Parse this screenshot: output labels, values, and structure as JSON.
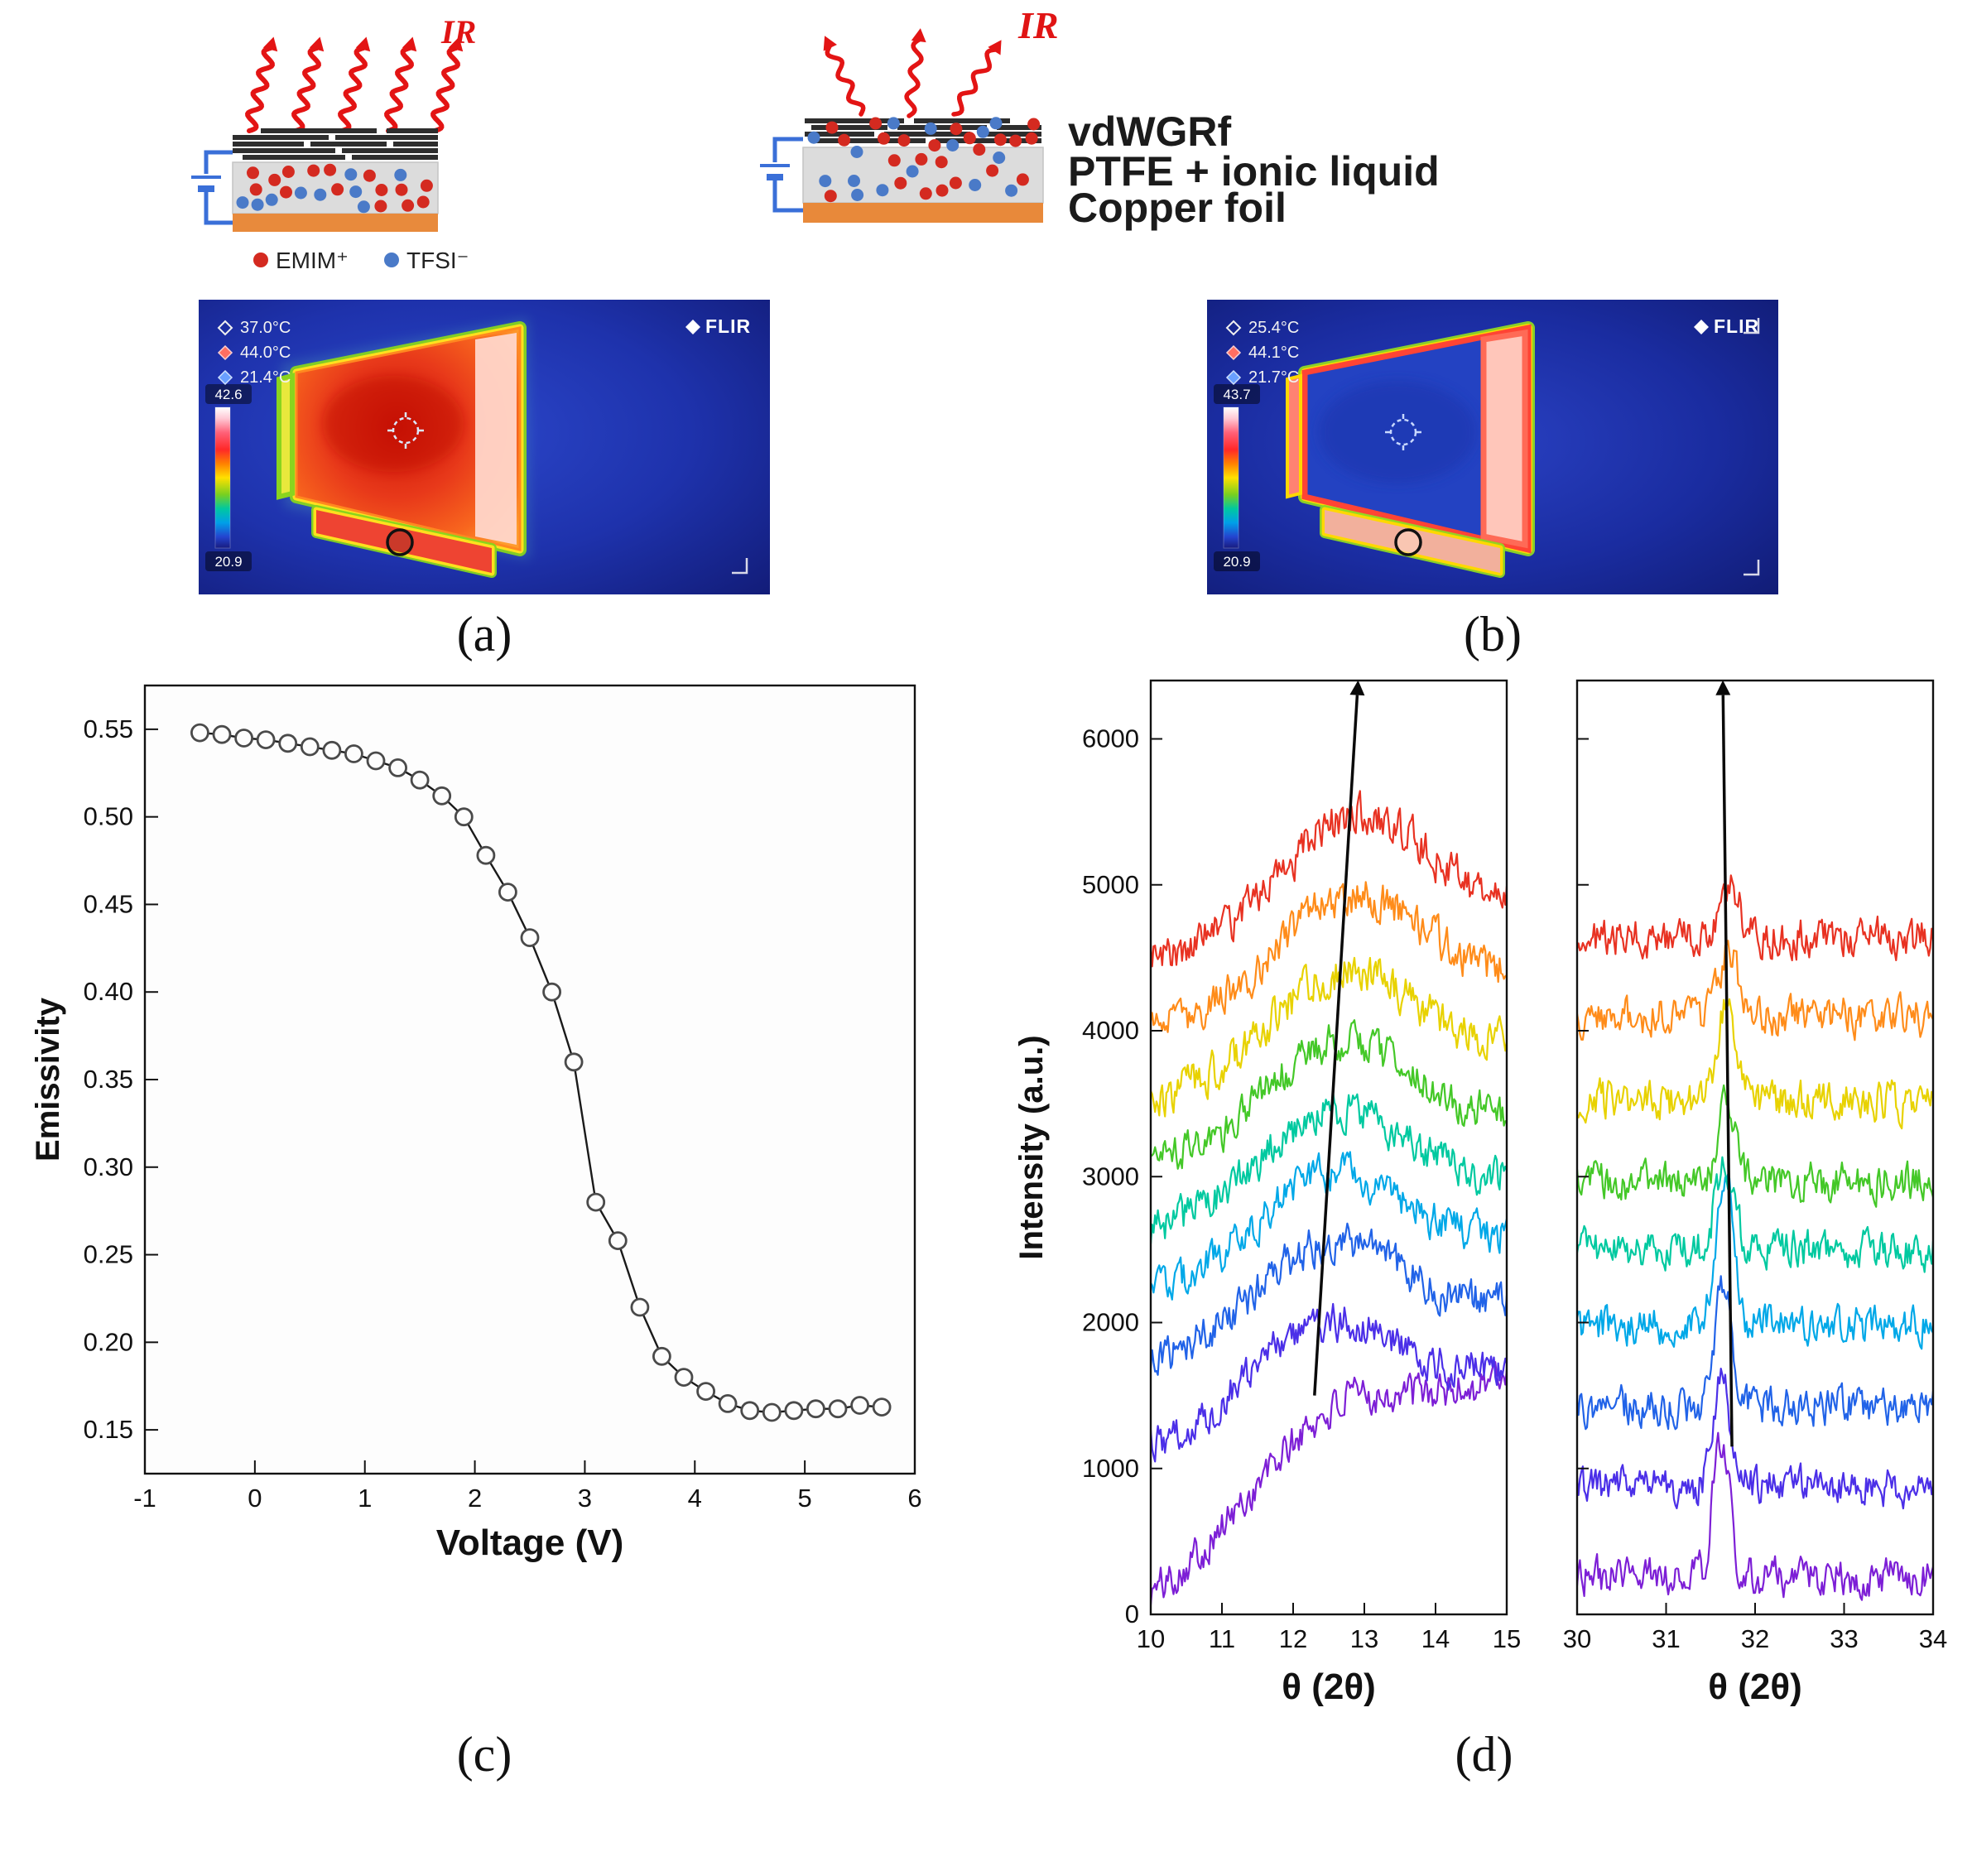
{
  "figure": {
    "panel_labels": {
      "a": "(a)",
      "b": "(b)",
      "c": "(c)",
      "d": "(d)"
    }
  },
  "schematic_a": {
    "ir_label": "IR",
    "legend": [
      {
        "name": "emim-cation",
        "label": "EMIM⁺",
        "color": "#d42a20"
      },
      {
        "name": "tfsi-anion",
        "label": "TFSI⁻",
        "color": "#4a7ac8"
      }
    ]
  },
  "schematic_b": {
    "ir_label": "IR",
    "layer_labels": {
      "film": "vdWGRf",
      "electrolyte": "PTFE + ionic liquid",
      "substrate": "Copper foil"
    }
  },
  "thermal_a": {
    "brand": "FLIR",
    "readings": [
      {
        "marker": "spot-marker",
        "value": "37.0°C"
      },
      {
        "marker": "hot-marker",
        "value": "44.0°C"
      },
      {
        "marker": "cold-marker",
        "value": "21.4°C"
      }
    ],
    "scale_max": "42.6",
    "scale_min": "20.9"
  },
  "thermal_b": {
    "brand": "FLIR",
    "readings": [
      {
        "marker": "spot-marker",
        "value": "25.4°C"
      },
      {
        "marker": "hot-marker",
        "value": "44.1°C"
      },
      {
        "marker": "cold-marker",
        "value": "21.7°C"
      }
    ],
    "scale_max": "43.7",
    "scale_min": "20.9"
  },
  "chart_data": [
    {
      "id": "emissivity-vs-voltage",
      "type": "scatter",
      "xlabel": "Voltage (V)",
      "ylabel": "Emissivity",
      "xlim": [
        -1,
        6
      ],
      "ylim": [
        0.125,
        0.575
      ],
      "xticks": [
        -1,
        0,
        1,
        2,
        3,
        4,
        5,
        6
      ],
      "yticks": [
        0.15,
        0.2,
        0.25,
        0.3,
        0.35,
        0.4,
        0.45,
        0.5,
        0.55
      ],
      "marker": "open-circle",
      "line_color": "#1a1a1a",
      "x": [
        -0.5,
        -0.3,
        -0.1,
        0.1,
        0.3,
        0.5,
        0.7,
        0.9,
        1.1,
        1.3,
        1.5,
        1.7,
        1.9,
        2.1,
        2.3,
        2.5,
        2.7,
        2.9,
        3.1,
        3.3,
        3.5,
        3.7,
        3.9,
        4.1,
        4.3,
        4.5,
        4.7,
        4.9,
        5.1,
        5.3,
        5.5,
        5.7
      ],
      "y": [
        0.548,
        0.547,
        0.545,
        0.544,
        0.542,
        0.54,
        0.538,
        0.536,
        0.532,
        0.528,
        0.521,
        0.512,
        0.5,
        0.478,
        0.457,
        0.431,
        0.4,
        0.36,
        0.28,
        0.258,
        0.22,
        0.192,
        0.18,
        0.172,
        0.165,
        0.161,
        0.16,
        0.161,
        0.162,
        0.162,
        0.164,
        0.163
      ]
    },
    {
      "id": "xrd-low-angle",
      "type": "line",
      "xlabel": "θ (2θ)",
      "ylabel": "Intensity (a.u.)",
      "xlim": [
        10,
        15
      ],
      "ylim": [
        0,
        6400
      ],
      "xticks": [
        10,
        11,
        12,
        13,
        14,
        15
      ],
      "yticks": [
        0,
        1000,
        2000,
        3000,
        4000,
        5000,
        6000
      ],
      "arrow": {
        "x1": 12.3,
        "y1": 1500,
        "x2": 12.9,
        "y2": 6300
      },
      "series": [
        {
          "name": "trace-1",
          "color": "#7d1fd6",
          "baseline": 120,
          "slope": 300,
          "peak_center": 12.55,
          "peak_height": 520,
          "peak_width": 1.05,
          "noise": 150
        },
        {
          "name": "trace-2",
          "color": "#4b2fe8",
          "baseline": 1120,
          "slope": 110,
          "peak_center": 12.4,
          "peak_height": 620,
          "peak_width": 1.0,
          "noise": 150
        },
        {
          "name": "trace-3",
          "color": "#2163e8",
          "baseline": 1680,
          "slope": 90,
          "peak_center": 12.45,
          "peak_height": 640,
          "peak_width": 1.0,
          "noise": 150
        },
        {
          "name": "trace-4",
          "color": "#00a8e8",
          "baseline": 2180,
          "slope": 80,
          "peak_center": 12.5,
          "peak_height": 650,
          "peak_width": 1.0,
          "noise": 150
        },
        {
          "name": "trace-5",
          "color": "#00c9a0",
          "baseline": 2620,
          "slope": 70,
          "peak_center": 12.55,
          "peak_height": 660,
          "peak_width": 1.0,
          "noise": 150
        },
        {
          "name": "trace-6",
          "color": "#44c828",
          "baseline": 3060,
          "slope": 70,
          "peak_center": 12.62,
          "peak_height": 680,
          "peak_width": 1.0,
          "noise": 150
        },
        {
          "name": "trace-7",
          "color": "#e8d200",
          "baseline": 3520,
          "slope": 70,
          "peak_center": 12.7,
          "peak_height": 700,
          "peak_width": 1.0,
          "noise": 155
        },
        {
          "name": "trace-8",
          "color": "#ff8c1a",
          "baseline": 4000,
          "slope": 70,
          "peak_center": 12.78,
          "peak_height": 740,
          "peak_width": 1.0,
          "noise": 155
        },
        {
          "name": "trace-9",
          "color": "#e83222",
          "baseline": 4480,
          "slope": 70,
          "peak_center": 12.85,
          "peak_height": 800,
          "peak_width": 1.0,
          "noise": 160
        }
      ]
    },
    {
      "id": "xrd-high-angle",
      "type": "line",
      "xlabel": "θ (2θ)",
      "ylabel": "Intensity (a.u.)",
      "xlim": [
        30,
        34
      ],
      "ylim": [
        0,
        6400
      ],
      "xticks": [
        30,
        31,
        32,
        33,
        34
      ],
      "yticks": [
        0,
        1000,
        2000,
        3000,
        4000,
        5000,
        6000
      ],
      "arrow": {
        "x1": 31.74,
        "y1": 1150,
        "x2": 31.64,
        "y2": 6300
      },
      "series": [
        {
          "name": "trace-1",
          "color": "#7d1fd6",
          "baseline": 260,
          "slope": 0,
          "peak_center": 31.62,
          "peak_height": 950,
          "peak_width": 0.09,
          "noise": 150
        },
        {
          "name": "trace-2",
          "color": "#4b2fe8",
          "baseline": 880,
          "slope": 0,
          "peak_center": 31.63,
          "peak_height": 780,
          "peak_width": 0.09,
          "noise": 150
        },
        {
          "name": "trace-3",
          "color": "#2163e8",
          "baseline": 1430,
          "slope": 0,
          "peak_center": 31.64,
          "peak_height": 850,
          "peak_width": 0.09,
          "noise": 150
        },
        {
          "name": "trace-4",
          "color": "#00a8e8",
          "baseline": 1980,
          "slope": 0,
          "peak_center": 31.66,
          "peak_height": 980,
          "peak_width": 0.1,
          "noise": 150
        },
        {
          "name": "trace-5",
          "color": "#00c9a0",
          "baseline": 2500,
          "slope": 0,
          "peak_center": 31.66,
          "peak_height": 620,
          "peak_width": 0.1,
          "noise": 150
        },
        {
          "name": "trace-6",
          "color": "#44c828",
          "baseline": 2960,
          "slope": 0,
          "peak_center": 31.68,
          "peak_height": 520,
          "peak_width": 0.1,
          "noise": 150
        },
        {
          "name": "trace-7",
          "color": "#e8d200",
          "baseline": 3520,
          "slope": 0,
          "peak_center": 31.68,
          "peak_height": 680,
          "peak_width": 0.1,
          "noise": 155
        },
        {
          "name": "trace-8",
          "color": "#ff8c1a",
          "baseline": 4100,
          "slope": 0,
          "peak_center": 31.7,
          "peak_height": 430,
          "peak_width": 0.1,
          "noise": 155
        },
        {
          "name": "trace-9",
          "color": "#e83222",
          "baseline": 4640,
          "slope": 0,
          "peak_center": 31.7,
          "peak_height": 380,
          "peak_width": 0.11,
          "noise": 160
        }
      ]
    }
  ]
}
